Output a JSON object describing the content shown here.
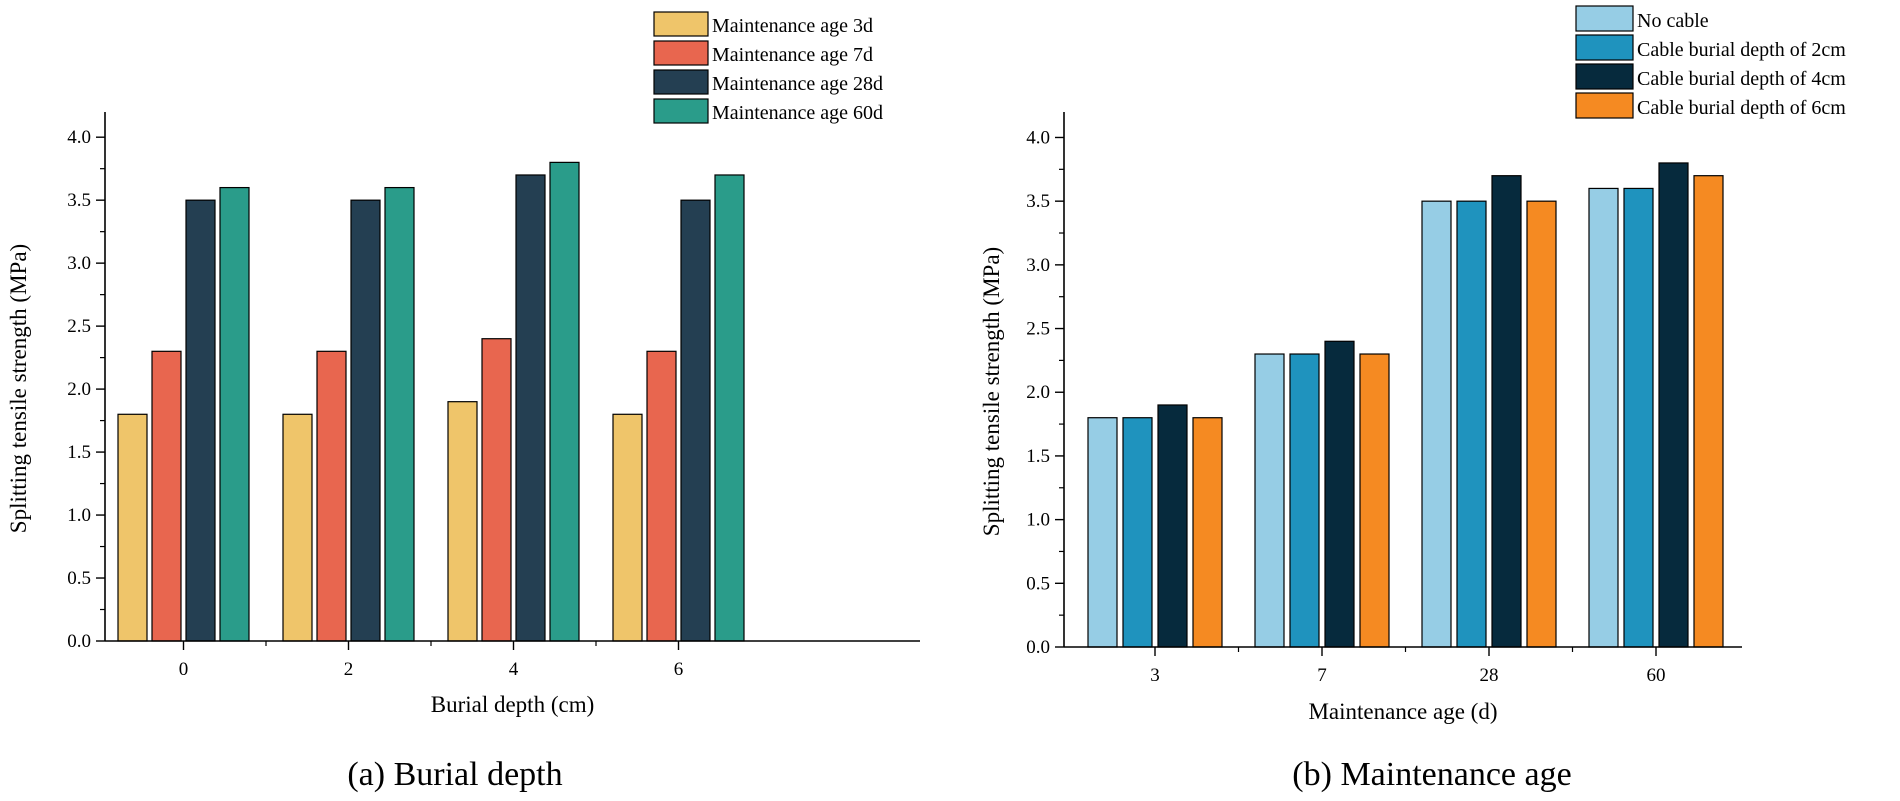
{
  "chart_data": [
    {
      "type": "bar",
      "caption": "(a) Burial depth",
      "xlabel": "Burial depth (cm)",
      "ylabel": "Splitting tensile strength (MPa)",
      "categories": [
        "0",
        "2",
        "4",
        "6"
      ],
      "ylim": [
        0,
        4.2
      ],
      "yticks": [
        "0.0",
        "0.5",
        "1.0",
        "1.5",
        "2.0",
        "2.5",
        "3.0",
        "3.5",
        "4.0"
      ],
      "grid": false,
      "legend_position": "top-right",
      "series": [
        {
          "name": "Maintenance age 3d",
          "color": "#EFC56A",
          "values": [
            1.8,
            1.8,
            1.9,
            1.8
          ]
        },
        {
          "name": "Maintenance age 7d",
          "color": "#E8664F",
          "values": [
            2.3,
            2.3,
            2.4,
            2.3
          ]
        },
        {
          "name": "Maintenance age 28d",
          "color": "#243F52",
          "values": [
            3.5,
            3.5,
            3.7,
            3.5
          ]
        },
        {
          "name": "Maintenance age 60d",
          "color": "#2A9C8A",
          "values": [
            3.6,
            3.6,
            3.8,
            3.7
          ]
        }
      ]
    },
    {
      "type": "bar",
      "caption": "(b) Maintenance age",
      "xlabel": "Maintenance age (d)",
      "ylabel": "Splitting tensile strength (MPa)",
      "categories": [
        "3",
        "7",
        "28",
        "60"
      ],
      "ylim": [
        0,
        4.2
      ],
      "yticks": [
        "0.0",
        "0.5",
        "1.0",
        "1.5",
        "2.0",
        "2.5",
        "3.0",
        "3.5",
        "4.0"
      ],
      "grid": false,
      "legend_position": "top-right",
      "series": [
        {
          "name": "No cable",
          "color": "#96CDE5",
          "values": [
            1.8,
            2.3,
            3.5,
            3.6
          ]
        },
        {
          "name": "Cable burial depth of 2cm",
          "color": "#1F93BE",
          "values": [
            1.8,
            2.3,
            3.5,
            3.6
          ]
        },
        {
          "name": "Cable burial depth of 4cm",
          "color": "#062A3D",
          "values": [
            1.9,
            2.4,
            3.7,
            3.8
          ]
        },
        {
          "name": "Cable burial depth of 6cm",
          "color": "#F58A22",
          "values": [
            1.8,
            2.3,
            3.5,
            3.7
          ]
        }
      ]
    }
  ]
}
